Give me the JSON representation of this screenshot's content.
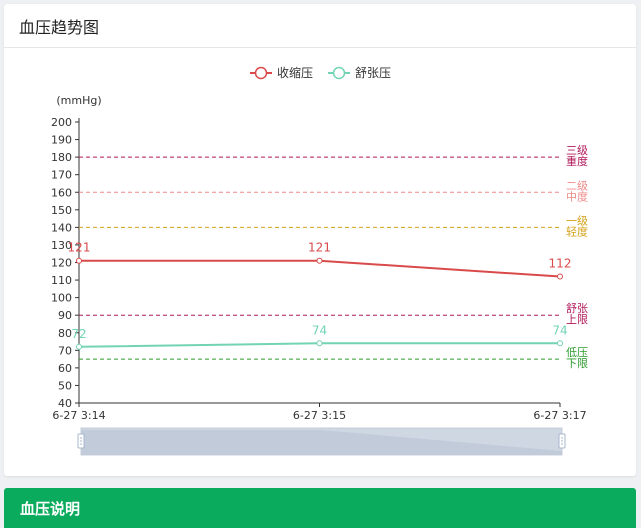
{
  "card": {
    "title": "血压趋势图"
  },
  "footer": {
    "title": "血压说明"
  },
  "chart_data": {
    "type": "line",
    "x": [
      "6-27 3:14",
      "6-27 3:15",
      "6-27 3:17"
    ],
    "ylabel": "(mmHg)",
    "ylim": [
      40,
      200
    ],
    "ytick_step": 10,
    "legend_position": "top-center",
    "series": [
      {
        "name": "收缩压",
        "values": [
          121,
          121,
          112
        ],
        "color": "#d94a4a"
      },
      {
        "name": "舒张压",
        "values": [
          72,
          74,
          74
        ],
        "color": "#72d3b5"
      }
    ],
    "reference_lines": [
      {
        "value": 180,
        "label": "三级重度",
        "color": "#b0185a"
      },
      {
        "value": 160,
        "label": "二级中度",
        "color": "#f08a8a"
      },
      {
        "value": 140,
        "label": "一级轻度",
        "color": "#d4a017"
      },
      {
        "value": 90,
        "label": "舒张上限",
        "color": "#b0185a"
      },
      {
        "value": 65,
        "label": "低压下限",
        "color": "#2e9a2e"
      }
    ],
    "data_zoom": {
      "visible": true
    }
  }
}
